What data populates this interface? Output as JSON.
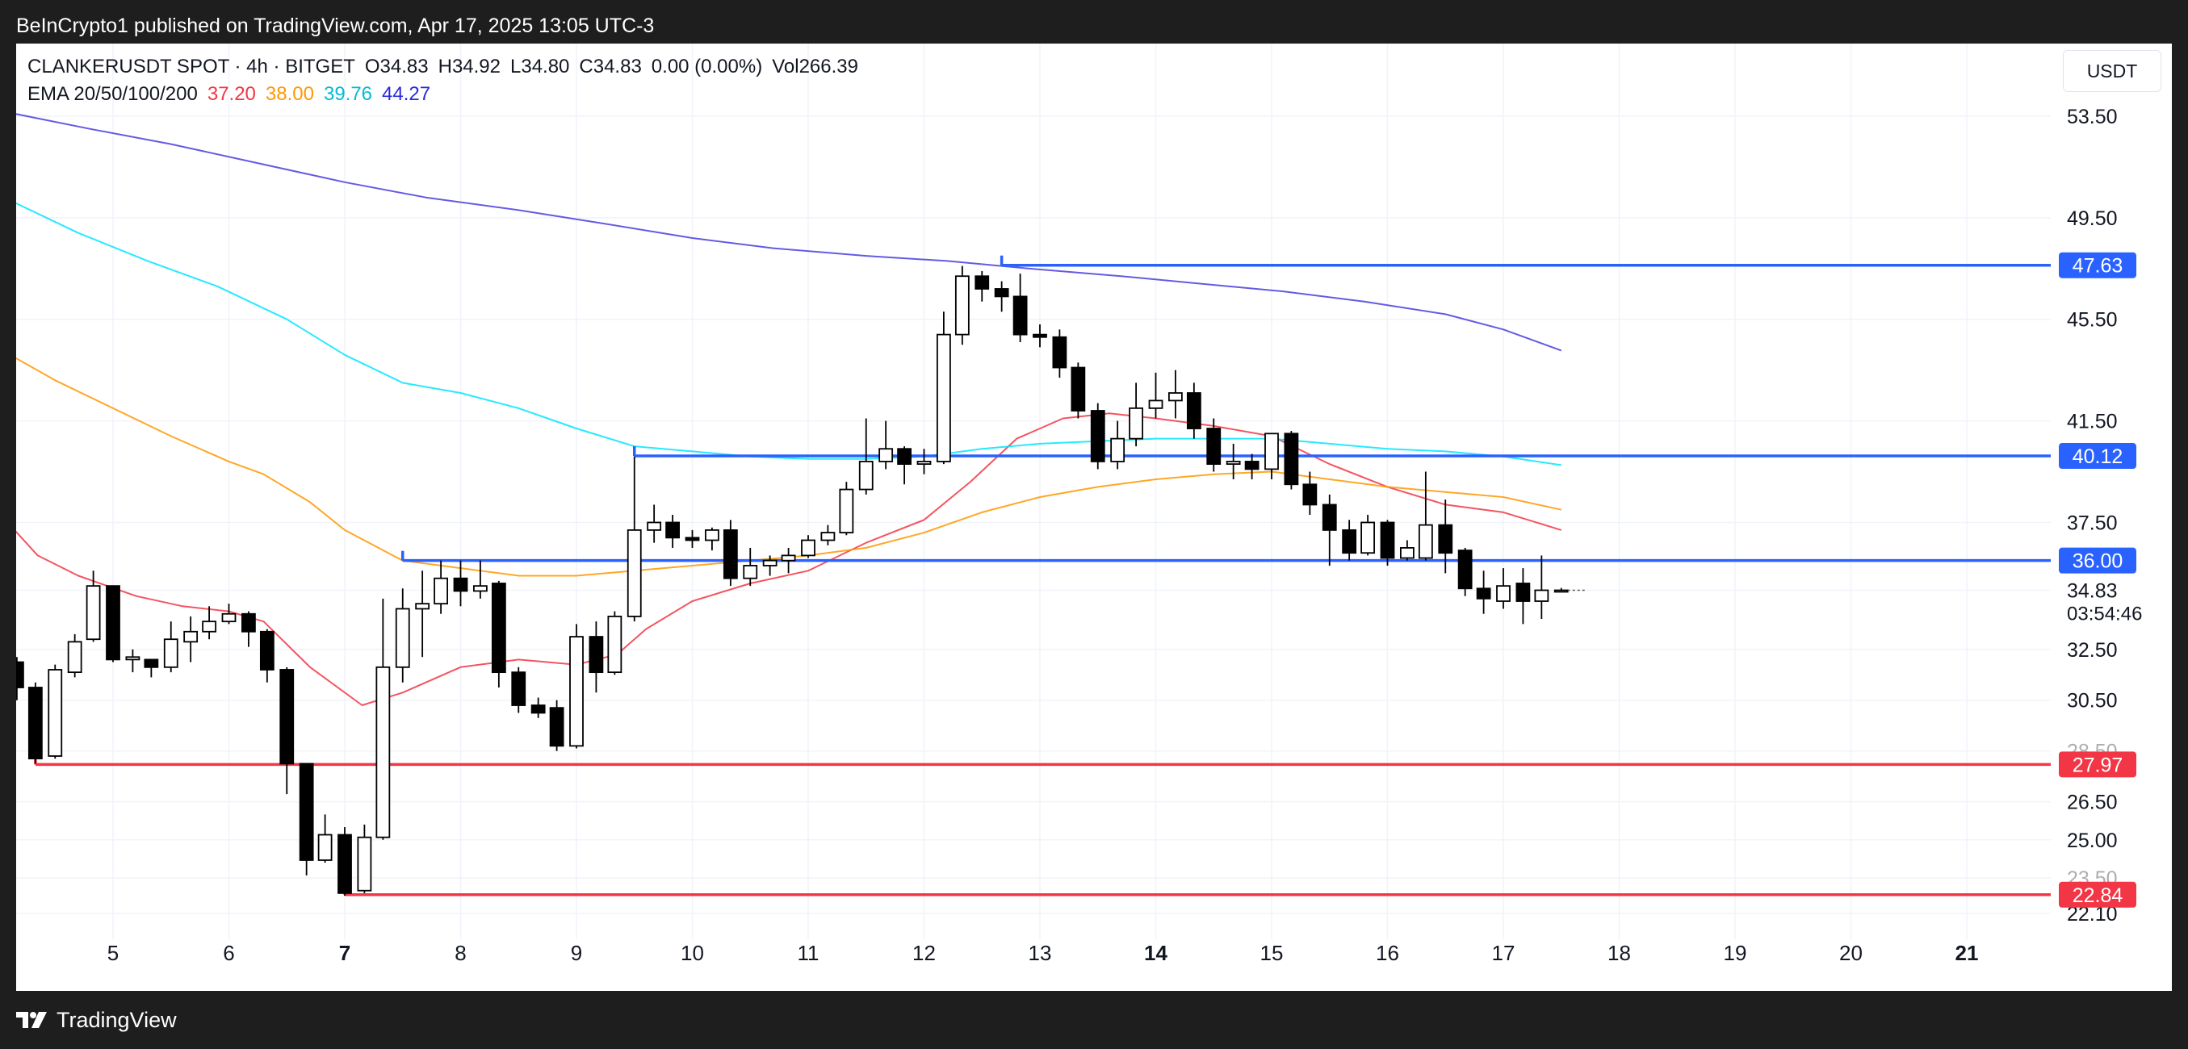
{
  "header": {
    "published_by": "BeInCrypto1 published on TradingView.com, Apr 17, 2025 13:05 UTC-3"
  },
  "legend": {
    "symbol_line": "CLANKERUSDT SPOT · 4h · BITGET",
    "open": "O34.83",
    "high": "H34.92",
    "low": "L34.80",
    "close": "C34.83",
    "change": "0.00 (0.00%)",
    "volume": "Vol266.39",
    "ema_label": "EMA 20/50/100/200",
    "ema20": "37.20",
    "ema50": "38.00",
    "ema100": "39.76",
    "ema200": "44.27"
  },
  "currency": "USDT",
  "footer": {
    "brand": "TradingView"
  },
  "colors": {
    "up_body": "#ffffff",
    "down_body": "#000000",
    "resistance": "#2962ff",
    "support": "#f23645",
    "ema20": "#f23645",
    "ema50": "#ff9800",
    "ema100": "#00e5ff",
    "ema200": "#4a3dde",
    "axis_text": "#131722",
    "grid": "#f0f3fa"
  },
  "chart_data": {
    "type": "candlestick",
    "symbol": "CLANKERUSDT",
    "timeframe": "4h",
    "y_range": [
      20.9,
      56.0
    ],
    "x_range_days": [
      4.2,
      21.7
    ],
    "y_tick_labels": [
      "53.50",
      "49.50",
      "45.50",
      "41.50",
      "37.50",
      "34.83",
      "32.50",
      "30.50",
      "28.50",
      "26.50",
      "25.00",
      "23.50",
      "22.10"
    ],
    "x_ticks": [
      {
        "label": "5",
        "day": 5,
        "bold": false
      },
      {
        "label": "6",
        "day": 6,
        "bold": false
      },
      {
        "label": "7",
        "day": 7,
        "bold": true
      },
      {
        "label": "8",
        "day": 8,
        "bold": false
      },
      {
        "label": "9",
        "day": 9,
        "bold": false
      },
      {
        "label": "10",
        "day": 10,
        "bold": false
      },
      {
        "label": "11",
        "day": 11,
        "bold": false
      },
      {
        "label": "12",
        "day": 12,
        "bold": false
      },
      {
        "label": "13",
        "day": 13,
        "bold": false
      },
      {
        "label": "14",
        "day": 14,
        "bold": true
      },
      {
        "label": "15",
        "day": 15,
        "bold": false
      },
      {
        "label": "16",
        "day": 16,
        "bold": false
      },
      {
        "label": "17",
        "day": 17,
        "bold": false
      },
      {
        "label": "18",
        "day": 18,
        "bold": false
      },
      {
        "label": "19",
        "day": 19,
        "bold": false
      },
      {
        "label": "20",
        "day": 20,
        "bold": false
      },
      {
        "label": "21",
        "day": 21,
        "bold": true
      }
    ],
    "levels": [
      {
        "value": 47.63,
        "label": "47.63",
        "kind": "resistance",
        "from_day": 12.67
      },
      {
        "value": 40.12,
        "label": "40.12",
        "kind": "resistance",
        "from_day": 9.5
      },
      {
        "value": 36.0,
        "label": "36.00",
        "kind": "resistance",
        "from_day": 7.5
      },
      {
        "value": 27.97,
        "label": "27.97",
        "kind": "support",
        "from_day": 4.33
      },
      {
        "value": 22.84,
        "label": "22.84",
        "kind": "support",
        "from_day": 7.0
      }
    ],
    "last_price": {
      "value": 34.83,
      "label": "34.83",
      "countdown": "03:54:46"
    },
    "candles": [
      [
        4.17,
        32.0,
        31.0,
        32.2,
        30.5
      ],
      [
        4.33,
        31.0,
        28.2,
        31.2,
        28.0
      ],
      [
        4.5,
        28.3,
        31.7,
        31.9,
        28.2
      ],
      [
        4.67,
        31.6,
        32.8,
        33.1,
        31.4
      ],
      [
        4.83,
        32.9,
        35.0,
        35.6,
        32.8
      ],
      [
        5.0,
        35.0,
        32.1,
        35.0,
        32.0
      ],
      [
        5.17,
        32.1,
        32.2,
        32.5,
        31.6
      ],
      [
        5.33,
        32.1,
        31.8,
        32.1,
        31.4
      ],
      [
        5.5,
        31.8,
        32.9,
        33.6,
        31.6
      ],
      [
        5.67,
        32.8,
        33.2,
        33.8,
        32.0
      ],
      [
        5.83,
        33.2,
        33.6,
        34.2,
        32.9
      ],
      [
        6.0,
        33.6,
        33.9,
        34.3,
        33.5
      ],
      [
        6.17,
        33.9,
        33.2,
        34.0,
        32.6
      ],
      [
        6.33,
        33.2,
        31.7,
        33.3,
        31.2
      ],
      [
        6.5,
        31.7,
        28.0,
        31.8,
        26.8
      ],
      [
        6.67,
        28.0,
        24.2,
        28.0,
        23.6
      ],
      [
        6.83,
        24.2,
        25.2,
        26.0,
        24.1
      ],
      [
        7.0,
        25.2,
        22.9,
        25.5,
        22.8
      ],
      [
        7.17,
        23.0,
        25.1,
        25.6,
        22.9
      ],
      [
        7.33,
        25.1,
        31.8,
        34.5,
        25.0
      ],
      [
        7.5,
        31.8,
        34.1,
        34.9,
        31.2
      ],
      [
        7.67,
        34.1,
        34.3,
        35.6,
        32.2
      ],
      [
        7.83,
        34.3,
        35.3,
        36.0,
        33.9
      ],
      [
        8.0,
        35.3,
        34.8,
        36.0,
        34.2
      ],
      [
        8.17,
        34.8,
        35.0,
        36.0,
        34.5
      ],
      [
        8.33,
        35.1,
        31.6,
        35.2,
        31.0
      ],
      [
        8.5,
        31.6,
        30.3,
        31.8,
        30.0
      ],
      [
        8.67,
        30.3,
        30.0,
        30.6,
        29.8
      ],
      [
        8.83,
        30.2,
        28.7,
        30.5,
        28.5
      ],
      [
        9.0,
        28.7,
        33.0,
        33.5,
        28.6
      ],
      [
        9.17,
        33.0,
        31.6,
        33.6,
        30.8
      ],
      [
        9.33,
        31.6,
        33.8,
        34.0,
        31.5
      ],
      [
        9.5,
        33.8,
        37.2,
        40.1,
        33.6
      ],
      [
        9.67,
        37.2,
        37.5,
        38.2,
        36.7
      ],
      [
        9.83,
        37.5,
        36.9,
        37.8,
        36.5
      ],
      [
        10.0,
        36.9,
        36.8,
        37.2,
        36.5
      ],
      [
        10.17,
        36.8,
        37.2,
        37.3,
        36.4
      ],
      [
        10.33,
        37.2,
        35.3,
        37.6,
        35.0
      ],
      [
        10.5,
        35.3,
        35.8,
        36.5,
        35.0
      ],
      [
        10.67,
        35.8,
        36.0,
        36.2,
        35.4
      ],
      [
        10.83,
        36.0,
        36.2,
        36.5,
        35.5
      ],
      [
        11.0,
        36.2,
        36.8,
        37.0,
        36.1
      ],
      [
        11.17,
        36.8,
        37.1,
        37.4,
        36.6
      ],
      [
        11.33,
        37.1,
        38.8,
        39.1,
        37.0
      ],
      [
        11.5,
        38.8,
        39.9,
        41.6,
        38.6
      ],
      [
        11.67,
        39.9,
        40.4,
        41.5,
        39.6
      ],
      [
        11.83,
        40.4,
        39.8,
        40.5,
        39.0
      ],
      [
        12.0,
        39.8,
        39.9,
        40.4,
        39.4
      ],
      [
        12.17,
        39.9,
        44.9,
        45.8,
        39.8
      ],
      [
        12.33,
        44.9,
        47.2,
        47.6,
        44.5
      ],
      [
        12.5,
        47.2,
        46.7,
        47.4,
        46.2
      ],
      [
        12.67,
        46.7,
        46.4,
        47.0,
        45.8
      ],
      [
        12.83,
        46.4,
        44.9,
        47.3,
        44.6
      ],
      [
        13.0,
        44.9,
        44.8,
        45.3,
        44.4
      ],
      [
        13.17,
        44.8,
        43.6,
        45.1,
        43.2
      ],
      [
        13.33,
        43.6,
        41.9,
        43.8,
        41.6
      ],
      [
        13.5,
        41.9,
        39.9,
        42.2,
        39.6
      ],
      [
        13.67,
        39.9,
        40.8,
        41.5,
        39.6
      ],
      [
        13.83,
        40.8,
        42.0,
        43.0,
        40.5
      ],
      [
        14.0,
        42.0,
        42.3,
        43.4,
        41.6
      ],
      [
        14.17,
        42.3,
        42.6,
        43.5,
        41.6
      ],
      [
        14.33,
        42.6,
        41.2,
        43.0,
        40.8
      ],
      [
        14.5,
        41.2,
        39.8,
        41.6,
        39.5
      ],
      [
        14.67,
        39.8,
        39.9,
        40.6,
        39.2
      ],
      [
        14.83,
        39.9,
        39.6,
        40.2,
        39.2
      ],
      [
        15.0,
        39.6,
        41.0,
        41.0,
        39.2
      ],
      [
        15.17,
        41.0,
        39.0,
        41.1,
        38.8
      ],
      [
        15.33,
        39.0,
        38.2,
        39.5,
        37.8
      ],
      [
        15.5,
        38.2,
        37.2,
        38.6,
        35.8
      ],
      [
        15.67,
        37.2,
        36.3,
        37.6,
        36.0
      ],
      [
        15.83,
        36.3,
        37.5,
        37.8,
        36.2
      ],
      [
        16.0,
        37.5,
        36.1,
        37.6,
        35.8
      ],
      [
        16.17,
        36.1,
        36.5,
        36.8,
        36.0
      ],
      [
        16.33,
        36.1,
        37.4,
        39.5,
        36.0
      ],
      [
        16.5,
        37.4,
        36.3,
        38.4,
        35.5
      ],
      [
        16.67,
        36.4,
        34.9,
        36.5,
        34.6
      ],
      [
        16.83,
        34.9,
        34.5,
        35.6,
        33.9
      ],
      [
        17.0,
        34.4,
        35.0,
        35.7,
        34.1
      ],
      [
        17.17,
        35.1,
        34.4,
        35.7,
        33.5
      ],
      [
        17.33,
        34.4,
        34.83,
        36.2,
        33.7
      ],
      [
        17.5,
        34.83,
        34.83,
        34.92,
        34.8
      ]
    ],
    "ema_series": [
      {
        "name": "EMA 20",
        "value": "37.20",
        "color": "#f23645",
        "points": [
          [
            4.15,
            37.2
          ],
          [
            4.35,
            36.2
          ],
          [
            4.7,
            35.4
          ],
          [
            5.2,
            34.6
          ],
          [
            5.6,
            34.2
          ],
          [
            6.0,
            34.0
          ],
          [
            6.3,
            33.6
          ],
          [
            6.7,
            31.8
          ],
          [
            7.15,
            30.3
          ],
          [
            7.5,
            30.8
          ],
          [
            8.0,
            31.8
          ],
          [
            8.5,
            32.1
          ],
          [
            9.0,
            31.9
          ],
          [
            9.35,
            32.3
          ],
          [
            9.6,
            33.3
          ],
          [
            10.0,
            34.4
          ],
          [
            10.5,
            35.1
          ],
          [
            11.0,
            35.6
          ],
          [
            11.5,
            36.7
          ],
          [
            12.0,
            37.6
          ],
          [
            12.4,
            39.1
          ],
          [
            12.8,
            40.8
          ],
          [
            13.2,
            41.6
          ],
          [
            13.6,
            41.8
          ],
          [
            14.0,
            41.6
          ],
          [
            14.5,
            41.3
          ],
          [
            15.0,
            40.9
          ],
          [
            15.5,
            39.8
          ],
          [
            16.0,
            38.9
          ],
          [
            16.5,
            38.2
          ],
          [
            17.0,
            37.9
          ],
          [
            17.5,
            37.2
          ]
        ]
      },
      {
        "name": "EMA 50",
        "value": "38.00",
        "color": "#ff9800",
        "points": [
          [
            4.15,
            44.0
          ],
          [
            4.5,
            43.1
          ],
          [
            5.0,
            42.0
          ],
          [
            5.5,
            40.9
          ],
          [
            6.0,
            39.9
          ],
          [
            6.3,
            39.4
          ],
          [
            6.7,
            38.3
          ],
          [
            7.0,
            37.2
          ],
          [
            7.5,
            36.0
          ],
          [
            8.0,
            35.7
          ],
          [
            8.5,
            35.4
          ],
          [
            9.0,
            35.4
          ],
          [
            9.5,
            35.6
          ],
          [
            10.0,
            35.8
          ],
          [
            10.5,
            36.0
          ],
          [
            11.0,
            36.2
          ],
          [
            11.5,
            36.5
          ],
          [
            12.0,
            37.1
          ],
          [
            12.5,
            37.9
          ],
          [
            13.0,
            38.5
          ],
          [
            13.5,
            38.9
          ],
          [
            14.0,
            39.2
          ],
          [
            14.5,
            39.4
          ],
          [
            15.0,
            39.5
          ],
          [
            15.5,
            39.2
          ],
          [
            16.0,
            38.9
          ],
          [
            16.5,
            38.7
          ],
          [
            17.0,
            38.5
          ],
          [
            17.5,
            38.0
          ]
        ]
      },
      {
        "name": "EMA 100",
        "value": "39.76",
        "color": "#00e5ff",
        "points": [
          [
            4.15,
            50.1
          ],
          [
            4.7,
            48.9
          ],
          [
            5.3,
            47.8
          ],
          [
            5.9,
            46.8
          ],
          [
            6.5,
            45.5
          ],
          [
            7.0,
            44.1
          ],
          [
            7.5,
            43.0
          ],
          [
            8.0,
            42.6
          ],
          [
            8.5,
            42.0
          ],
          [
            9.0,
            41.2
          ],
          [
            9.5,
            40.5
          ],
          [
            10.0,
            40.3
          ],
          [
            10.5,
            40.1
          ],
          [
            11.0,
            40.0
          ],
          [
            11.5,
            40.0
          ],
          [
            12.0,
            40.1
          ],
          [
            12.5,
            40.4
          ],
          [
            13.0,
            40.6
          ],
          [
            13.5,
            40.7
          ],
          [
            14.0,
            40.8
          ],
          [
            14.5,
            40.8
          ],
          [
            15.0,
            40.8
          ],
          [
            15.5,
            40.6
          ],
          [
            16.0,
            40.4
          ],
          [
            16.5,
            40.3
          ],
          [
            17.0,
            40.1
          ],
          [
            17.5,
            39.76
          ]
        ]
      },
      {
        "name": "EMA 200",
        "value": "44.27",
        "color": "#4a3dde",
        "points": [
          [
            4.15,
            53.6
          ],
          [
            4.8,
            53.0
          ],
          [
            5.5,
            52.4
          ],
          [
            6.2,
            51.7
          ],
          [
            7.0,
            50.9
          ],
          [
            7.7,
            50.3
          ],
          [
            8.5,
            49.8
          ],
          [
            9.2,
            49.3
          ],
          [
            10.0,
            48.7
          ],
          [
            10.7,
            48.3
          ],
          [
            11.5,
            48.0
          ],
          [
            12.2,
            47.8
          ],
          [
            12.9,
            47.5
          ],
          [
            13.7,
            47.2
          ],
          [
            14.4,
            46.9
          ],
          [
            15.1,
            46.6
          ],
          [
            15.8,
            46.2
          ],
          [
            16.5,
            45.7
          ],
          [
            17.0,
            45.1
          ],
          [
            17.5,
            44.27
          ]
        ]
      }
    ]
  }
}
